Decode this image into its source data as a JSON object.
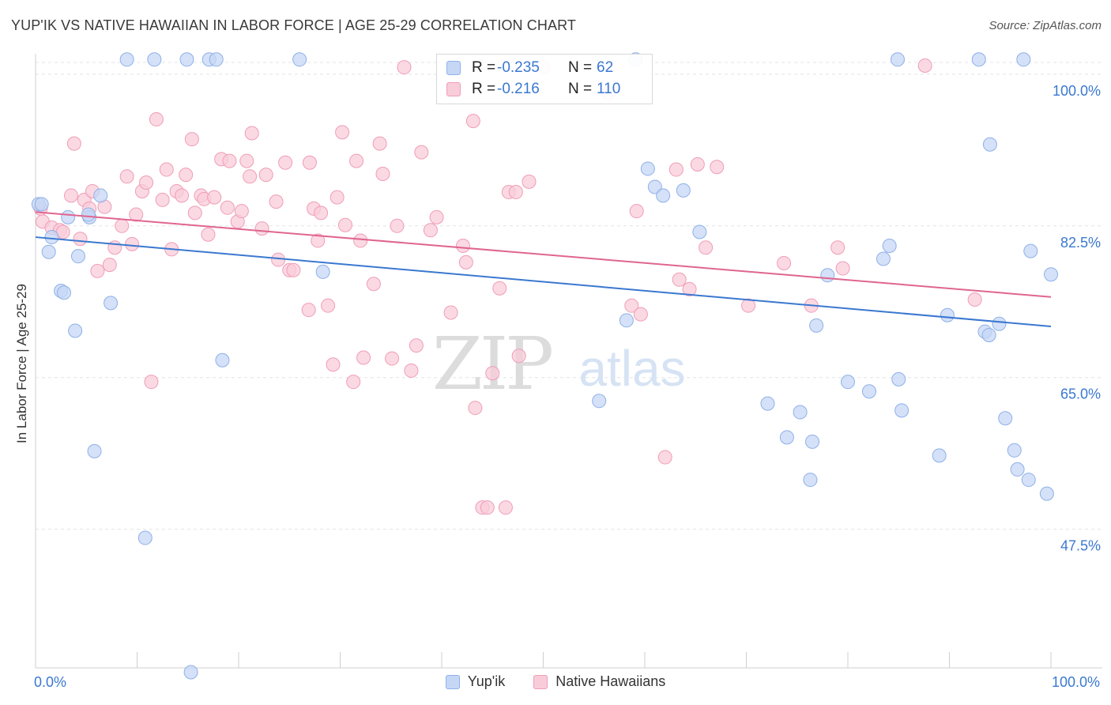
{
  "title": "YUP'IK VS NATIVE HAWAIIAN IN LABOR FORCE | AGE 25-29 CORRELATION CHART",
  "source": "Source: ZipAtlas.com",
  "watermark": {
    "zip": "ZIP",
    "atlas": "atlas"
  },
  "legend": {
    "r_label": "R =",
    "n_label": "N =",
    "rows": [
      {
        "r": "-0.235",
        "n": "62"
      },
      {
        "r": "-0.216",
        "n": "110"
      }
    ]
  },
  "bottom_legend": [
    "Yup'ik",
    "Native Hawaiians"
  ],
  "colors": {
    "blue_fill": "#c5d7f5",
    "blue_stroke": "#8fb0e8",
    "blue_line": "#3a78d0",
    "pink_fill": "#f9ccd9",
    "pink_stroke": "#ef9db8",
    "pink_line": "#e0658f",
    "tick_text": "#3a78d0",
    "grid": "#e3e3e3"
  },
  "chart_data": {
    "type": "scatter",
    "title": "YUP'IK VS NATIVE HAWAIIAN IN LABOR FORCE | AGE 25-29 CORRELATION CHART",
    "xlabel": "",
    "ylabel": "In Labor Force | Age 25-29",
    "xlim": [
      0,
      100
    ],
    "ylim": [
      31.5,
      102
    ],
    "x_tick_labels": [
      {
        "value": 0,
        "label": "0.0%"
      },
      {
        "value": 100,
        "label": "100.0%"
      }
    ],
    "y_ticks": [
      {
        "value": 100,
        "label": "100.0%"
      },
      {
        "value": 82.5,
        "label": "82.5%"
      },
      {
        "value": 65,
        "label": "65.0%"
      },
      {
        "value": 47.5,
        "label": "47.5%"
      }
    ],
    "grid": true,
    "legend_position": "top-center",
    "series": [
      {
        "name": "Yup'ik",
        "r": -0.235,
        "n": 62,
        "trend": [
          [
            0,
            81.2
          ],
          [
            100,
            70.9
          ]
        ],
        "points": [
          [
            0.3,
            85.0
          ],
          [
            0.6,
            85.0
          ],
          [
            3.2,
            83.5
          ],
          [
            5.3,
            83.5
          ],
          [
            6.4,
            86.0
          ],
          [
            5.2,
            83.8
          ],
          [
            1.6,
            81.2
          ],
          [
            1.3,
            79.5
          ],
          [
            4.2,
            79.0
          ],
          [
            2.5,
            75.0
          ],
          [
            2.8,
            74.8
          ],
          [
            7.4,
            73.6
          ],
          [
            3.9,
            70.4
          ],
          [
            9.0,
            101.7
          ],
          [
            11.7,
            101.7
          ],
          [
            14.9,
            101.7
          ],
          [
            17.1,
            101.7
          ],
          [
            17.8,
            101.7
          ],
          [
            26.0,
            101.7
          ],
          [
            59.1,
            101.7
          ],
          [
            84.9,
            101.7
          ],
          [
            92.9,
            101.7
          ],
          [
            97.3,
            101.7
          ],
          [
            18.4,
            67.0
          ],
          [
            28.3,
            77.2
          ],
          [
            5.8,
            56.5
          ],
          [
            10.8,
            46.5
          ],
          [
            15.3,
            31.0
          ],
          [
            60.3,
            89.1
          ],
          [
            61.0,
            87.0
          ],
          [
            61.8,
            86.0
          ],
          [
            63.8,
            86.6
          ],
          [
            65.4,
            81.8
          ],
          [
            58.2,
            71.6
          ],
          [
            55.5,
            62.3
          ],
          [
            72.1,
            62.0
          ],
          [
            74.0,
            58.1
          ],
          [
            75.3,
            61.0
          ],
          [
            76.5,
            57.6
          ],
          [
            76.3,
            53.2
          ],
          [
            76.9,
            71.0
          ],
          [
            78.0,
            76.8
          ],
          [
            80.0,
            64.5
          ],
          [
            82.1,
            63.4
          ],
          [
            83.5,
            78.7
          ],
          [
            84.1,
            80.2
          ],
          [
            85.3,
            61.2
          ],
          [
            85.0,
            64.8
          ],
          [
            89.0,
            56.0
          ],
          [
            89.8,
            72.2
          ],
          [
            93.5,
            70.3
          ],
          [
            93.9,
            69.9
          ],
          [
            94.0,
            91.9
          ],
          [
            94.9,
            71.2
          ],
          [
            95.5,
            60.3
          ],
          [
            96.4,
            56.6
          ],
          [
            96.7,
            54.4
          ],
          [
            97.8,
            53.2
          ],
          [
            98.0,
            79.6
          ],
          [
            99.6,
            51.6
          ],
          [
            100.0,
            76.9
          ]
        ]
      },
      {
        "name": "Native Hawaiians",
        "r": -0.216,
        "n": 110,
        "trend": [
          [
            0,
            84.1
          ],
          [
            100,
            74.3
          ]
        ],
        "points": [
          [
            0.5,
            84.5
          ],
          [
            0.7,
            83.0
          ],
          [
            1.6,
            82.3
          ],
          [
            2.4,
            82.0
          ],
          [
            2.7,
            81.8
          ],
          [
            3.5,
            86.0
          ],
          [
            3.8,
            92.0
          ],
          [
            4.4,
            81.0
          ],
          [
            4.8,
            85.5
          ],
          [
            5.3,
            84.5
          ],
          [
            5.6,
            86.5
          ],
          [
            6.1,
            77.3
          ],
          [
            6.8,
            84.7
          ],
          [
            7.3,
            78.0
          ],
          [
            7.8,
            80.0
          ],
          [
            8.5,
            82.5
          ],
          [
            9.0,
            88.2
          ],
          [
            9.5,
            80.4
          ],
          [
            9.9,
            83.8
          ],
          [
            10.5,
            86.5
          ],
          [
            10.9,
            87.5
          ],
          [
            11.4,
            64.5
          ],
          [
            11.9,
            94.8
          ],
          [
            12.5,
            85.5
          ],
          [
            12.9,
            89.0
          ],
          [
            13.4,
            79.8
          ],
          [
            13.9,
            86.5
          ],
          [
            14.4,
            86.0
          ],
          [
            14.8,
            88.4
          ],
          [
            15.4,
            92.5
          ],
          [
            15.7,
            84.0
          ],
          [
            16.3,
            86.0
          ],
          [
            16.6,
            85.6
          ],
          [
            17.0,
            81.5
          ],
          [
            17.6,
            85.8
          ],
          [
            18.3,
            90.2
          ],
          [
            18.9,
            84.6
          ],
          [
            19.1,
            90.0
          ],
          [
            19.9,
            83.0
          ],
          [
            20.3,
            84.2
          ],
          [
            20.8,
            90.0
          ],
          [
            21.1,
            88.2
          ],
          [
            21.3,
            93.2
          ],
          [
            22.3,
            82.2
          ],
          [
            22.7,
            88.4
          ],
          [
            23.7,
            85.3
          ],
          [
            23.9,
            78.6
          ],
          [
            24.6,
            89.8
          ],
          [
            25.0,
            77.4
          ],
          [
            25.4,
            77.4
          ],
          [
            26.9,
            72.8
          ],
          [
            27.0,
            89.8
          ],
          [
            27.4,
            84.5
          ],
          [
            27.8,
            80.8
          ],
          [
            28.1,
            84.0
          ],
          [
            28.8,
            73.3
          ],
          [
            29.3,
            66.5
          ],
          [
            29.7,
            85.8
          ],
          [
            30.2,
            93.3
          ],
          [
            30.5,
            82.6
          ],
          [
            31.3,
            64.5
          ],
          [
            31.6,
            90.0
          ],
          [
            32.0,
            80.8
          ],
          [
            32.3,
            67.3
          ],
          [
            33.3,
            75.8
          ],
          [
            33.9,
            92.0
          ],
          [
            34.2,
            88.5
          ],
          [
            35.1,
            67.2
          ],
          [
            35.6,
            82.5
          ],
          [
            36.3,
            100.8
          ],
          [
            37.0,
            65.8
          ],
          [
            37.5,
            68.7
          ],
          [
            38.0,
            91.0
          ],
          [
            38.9,
            82.0
          ],
          [
            39.5,
            83.5
          ],
          [
            40.9,
            72.5
          ],
          [
            42.1,
            80.2
          ],
          [
            42.4,
            78.3
          ],
          [
            43.1,
            94.6
          ],
          [
            43.3,
            61.5
          ],
          [
            44.0,
            50.0
          ],
          [
            44.5,
            50.0
          ],
          [
            45.0,
            65.5
          ],
          [
            45.7,
            75.3
          ],
          [
            46.3,
            50.0
          ],
          [
            46.6,
            86.4
          ],
          [
            47.3,
            86.4
          ],
          [
            47.6,
            67.5
          ],
          [
            48.6,
            87.6
          ],
          [
            50.0,
            100.8
          ],
          [
            56.4,
            97.8
          ],
          [
            58.7,
            73.3
          ],
          [
            59.2,
            84.2
          ],
          [
            59.6,
            72.3
          ],
          [
            62.0,
            55.8
          ],
          [
            63.1,
            89.0
          ],
          [
            63.4,
            76.3
          ],
          [
            64.4,
            75.2
          ],
          [
            65.2,
            89.6
          ],
          [
            67.1,
            89.3
          ],
          [
            70.2,
            73.3
          ],
          [
            73.7,
            78.2
          ],
          [
            76.4,
            73.3
          ],
          [
            79.0,
            80.0
          ],
          [
            79.5,
            77.6
          ],
          [
            87.6,
            101.0
          ],
          [
            92.5,
            74.0
          ],
          [
            66.0,
            80.0
          ]
        ]
      }
    ]
  }
}
